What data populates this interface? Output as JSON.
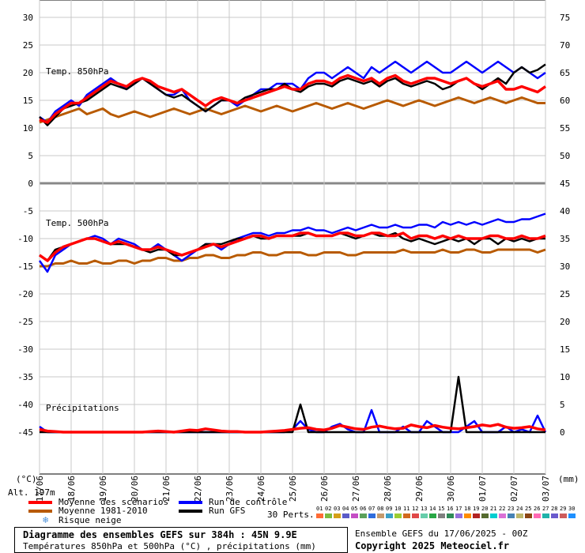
{
  "chart_data": {
    "type": "line",
    "title": "Diagramme des ensembles GEFS sur 384h : 45N 9.9E",
    "subtitle": "Températures 850hPa et 500hPa (°C) , précipitations (mm)",
    "x_tick_labels": [
      "17/06",
      "18/06",
      "19/06",
      "20/06",
      "21/06",
      "22/06",
      "23/06",
      "24/06",
      "25/06",
      "26/06",
      "27/06",
      "28/06",
      "29/06",
      "30/06",
      "01/07",
      "02/07",
      "03/07"
    ],
    "left_axis": {
      "label": "(°C)",
      "ticks": [
        30,
        25,
        20,
        15,
        10,
        5,
        0,
        -5,
        -10,
        -15,
        -20,
        -25,
        -30,
        -35,
        -40,
        -45
      ],
      "range": [
        -45,
        30
      ]
    },
    "right_axis": {
      "label": "(mm)",
      "ticks": [
        75,
        70,
        65,
        60,
        55,
        50,
        45,
        40,
        35,
        30,
        25,
        20,
        15,
        10,
        5,
        0
      ],
      "range": [
        0,
        75
      ]
    },
    "panel_labels": [
      "Temp. 850hPa",
      "Temp. 500hPa",
      "Précipitations"
    ],
    "x_step_days": 0.25,
    "series": [
      {
        "name": "Moyenne des scénarios",
        "group": "t850",
        "color": "#ff0000",
        "values": [
          11.5,
          11,
          12.5,
          13.5,
          14.5,
          14.5,
          15.5,
          16.5,
          17.5,
          18.5,
          18,
          17.5,
          18.5,
          19,
          18.5,
          17.5,
          17,
          16.5,
          17,
          16,
          15,
          14,
          15,
          15.5,
          15,
          14.5,
          15,
          15.5,
          16,
          16.5,
          17,
          17.5,
          17,
          17,
          18,
          18.5,
          18.5,
          18,
          19,
          19.5,
          19,
          18.5,
          19,
          18,
          19,
          19.5,
          18.5,
          18,
          18.5,
          19,
          19,
          18.5,
          18,
          18.5,
          19,
          18,
          17.5,
          18,
          18.5,
          17,
          17,
          17.5,
          17,
          16.5,
          17.5
        ]
      },
      {
        "name": "Moyenne 1981-2010",
        "group": "t850",
        "color": "#b85a00",
        "values": [
          11,
          11.5,
          12,
          12.5,
          13,
          13.5,
          12.5,
          13,
          13.5,
          12.5,
          12,
          12.5,
          13,
          12.5,
          12,
          12.5,
          13,
          13.5,
          13,
          12.5,
          13,
          13.5,
          13,
          12.5,
          13,
          13.5,
          14,
          13.5,
          13,
          13.5,
          14,
          13.5,
          13,
          13.5,
          14,
          14.5,
          14,
          13.5,
          14,
          14.5,
          14,
          13.5,
          14,
          14.5,
          15,
          14.5,
          14,
          14.5,
          15,
          14.5,
          14,
          14.5,
          15,
          15.5,
          15,
          14.5,
          15,
          15.5,
          15,
          14.5,
          15,
          15.5,
          15,
          14.5,
          14.5
        ]
      },
      {
        "name": "Run de contrôle",
        "group": "t850",
        "color": "#0000ff",
        "values": [
          12,
          11,
          13,
          14,
          15,
          14,
          16,
          17,
          18,
          19,
          18,
          17,
          18,
          19,
          18,
          17,
          16,
          16,
          17,
          15,
          14,
          13,
          14,
          15,
          15,
          14,
          15,
          16,
          17,
          17,
          18,
          18,
          18,
          17,
          19,
          20,
          20,
          19,
          20,
          21,
          20,
          19,
          21,
          20,
          21,
          22,
          21,
          20,
          21,
          22,
          21,
          20,
          20,
          21,
          22,
          21,
          20,
          21,
          22,
          21,
          20,
          21,
          20,
          19,
          20
        ]
      },
      {
        "name": "Run GFS",
        "group": "t850",
        "color": "#000000",
        "values": [
          12,
          10.5,
          12,
          13.5,
          14,
          14.5,
          15,
          16,
          17,
          18,
          17.5,
          17,
          18,
          19,
          18,
          17,
          16,
          15.5,
          16,
          15,
          14,
          13,
          14,
          15,
          15,
          14.5,
          15.5,
          16,
          16.5,
          17,
          17,
          18,
          17,
          16.5,
          17.5,
          18,
          18,
          17.5,
          18.5,
          19,
          18.5,
          18,
          18.5,
          17.5,
          18.5,
          19,
          18,
          17.5,
          18,
          18.5,
          18,
          17,
          17.5,
          18.5,
          19,
          18,
          17,
          18,
          19,
          18,
          20,
          21,
          20,
          20.5,
          21.5
        ]
      },
      {
        "name": "Moyenne des scénarios",
        "group": "t500",
        "color": "#ff0000",
        "values": [
          -13,
          -14,
          -12.5,
          -11.5,
          -11,
          -10.5,
          -10,
          -10,
          -10.5,
          -11,
          -10.5,
          -11,
          -11.5,
          -12,
          -12,
          -11.5,
          -12,
          -12.5,
          -13,
          -12.5,
          -12,
          -11.5,
          -11,
          -11.5,
          -11,
          -10.5,
          -10,
          -9.5,
          -9.5,
          -10,
          -9.5,
          -9.5,
          -9.5,
          -9,
          -9,
          -9.5,
          -9.5,
          -9.5,
          -9,
          -9,
          -9.5,
          -9.5,
          -9,
          -9,
          -9.5,
          -9.5,
          -9,
          -10,
          -9.5,
          -9.5,
          -10,
          -9.5,
          -10,
          -9.5,
          -10,
          -10,
          -10,
          -9.5,
          -9.5,
          -10,
          -10,
          -9.5,
          -10,
          -10,
          -9.5
        ]
      },
      {
        "name": "Moyenne 1981-2010",
        "group": "t500",
        "color": "#b85a00",
        "values": [
          -15,
          -15,
          -14.5,
          -14.5,
          -14,
          -14.5,
          -14.5,
          -14,
          -14.5,
          -14.5,
          -14,
          -14,
          -14.5,
          -14,
          -14,
          -13.5,
          -13.5,
          -14,
          -14,
          -13.5,
          -13.5,
          -13,
          -13,
          -13.5,
          -13.5,
          -13,
          -13,
          -12.5,
          -12.5,
          -13,
          -13,
          -12.5,
          -12.5,
          -12.5,
          -13,
          -13,
          -12.5,
          -12.5,
          -12.5,
          -13,
          -13,
          -12.5,
          -12.5,
          -12.5,
          -12.5,
          -12.5,
          -12,
          -12.5,
          -12.5,
          -12.5,
          -12.5,
          -12,
          -12.5,
          -12.5,
          -12,
          -12,
          -12.5,
          -12.5,
          -12,
          -12,
          -12,
          -12,
          -12,
          -12.5,
          -12
        ]
      },
      {
        "name": "Run de contrôle",
        "group": "t500",
        "color": "#0000ff",
        "values": [
          -14,
          -16,
          -13,
          -12,
          -11,
          -10.5,
          -10,
          -9.5,
          -10,
          -11,
          -10,
          -10.5,
          -11,
          -12,
          -12,
          -11,
          -12,
          -13,
          -14,
          -13,
          -12,
          -11,
          -11,
          -12,
          -11,
          -10,
          -9.5,
          -9,
          -9,
          -9.5,
          -9,
          -9,
          -8.5,
          -8.5,
          -8,
          -8.5,
          -8.5,
          -9,
          -8.5,
          -8,
          -8.5,
          -8,
          -7.5,
          -8,
          -8,
          -7.5,
          -8,
          -8,
          -7.5,
          -7.5,
          -8,
          -7,
          -7.5,
          -7,
          -7.5,
          -7,
          -7.5,
          -7,
          -6.5,
          -7,
          -7,
          -6.5,
          -6.5,
          -6,
          -5.5
        ]
      },
      {
        "name": "Run GFS",
        "group": "t500",
        "color": "#000000",
        "values": [
          -13,
          -14,
          -12,
          -11.5,
          -11,
          -10.5,
          -10,
          -10,
          -10.5,
          -11,
          -11,
          -11,
          -11.5,
          -12,
          -12.5,
          -12,
          -12,
          -13,
          -13,
          -12.5,
          -12,
          -11,
          -11,
          -11,
          -10.5,
          -10,
          -10,
          -9.5,
          -10,
          -10,
          -9.5,
          -9.5,
          -9.5,
          -9.5,
          -9,
          -9.5,
          -9.5,
          -9.5,
          -9,
          -9.5,
          -10,
          -9.5,
          -9,
          -9.5,
          -9.5,
          -9,
          -10,
          -10.5,
          -10,
          -10.5,
          -11,
          -10.5,
          -10,
          -10.5,
          -10,
          -11,
          -10,
          -10,
          -11,
          -10,
          -10.5,
          -10,
          -10.5,
          -10,
          -10
        ]
      },
      {
        "name": "Moyenne des scénarios",
        "group": "precip",
        "color": "#ff0000",
        "values": [
          0.5,
          0.2,
          0.1,
          0,
          0,
          0,
          0,
          0,
          0,
          0,
          0,
          0,
          0,
          0,
          0.1,
          0.2,
          0.1,
          0,
          0.2,
          0.4,
          0.3,
          0.6,
          0.4,
          0.2,
          0.1,
          0.1,
          0,
          0,
          0,
          0.1,
          0.2,
          0.3,
          0.5,
          0.7,
          0.8,
          0.5,
          0.4,
          0.7,
          1.2,
          0.9,
          0.6,
          0.5,
          0.9,
          1.1,
          0.8,
          0.6,
          0.7,
          1.3,
          1,
          0.8,
          1.2,
          0.9,
          0.7,
          0.6,
          0.8,
          1,
          1.3,
          1.1,
          1.4,
          0.9,
          0.7,
          0.8,
          1,
          0.6,
          0.4
        ]
      },
      {
        "name": "Run de contrôle",
        "group": "precip",
        "color": "#0000ff",
        "values": [
          1,
          0,
          0,
          0,
          0,
          0,
          0,
          0,
          0,
          0,
          0,
          0,
          0,
          0,
          0,
          0,
          0,
          0,
          0,
          0,
          0,
          0,
          0,
          0,
          0,
          0,
          0,
          0,
          0,
          0,
          0,
          0,
          0.5,
          2,
          0.5,
          0,
          0,
          1,
          1.5,
          0.5,
          0,
          0,
          4,
          0,
          0,
          0,
          1,
          0,
          0,
          2,
          1,
          0,
          0,
          0,
          1,
          2,
          0,
          0,
          0,
          1,
          0,
          0.5,
          0,
          3,
          0
        ]
      },
      {
        "name": "Run GFS",
        "group": "precip",
        "color": "#000000",
        "values": [
          0,
          0,
          0,
          0,
          0,
          0,
          0,
          0,
          0,
          0,
          0,
          0,
          0,
          0,
          0,
          0,
          0,
          0,
          0,
          0,
          0,
          0,
          0,
          0,
          0,
          0,
          0,
          0,
          0,
          0,
          0,
          0,
          0,
          5,
          0,
          0,
          0,
          0,
          0,
          0,
          0,
          0,
          0,
          0,
          0,
          0,
          0,
          0,
          0,
          0,
          0,
          0,
          0,
          10,
          0,
          0,
          0,
          0,
          0,
          0,
          0,
          0,
          0,
          0,
          0
        ]
      }
    ],
    "legend": [
      {
        "label": "Moyenne des scénarios",
        "color": "#ff0000"
      },
      {
        "label": "Moyenne 1981-2010",
        "color": "#b85a00"
      },
      {
        "label": "Run de contrôle",
        "color": "#0000ff"
      },
      {
        "label": "Run GFS",
        "color": "#000000"
      },
      {
        "label": "Risque neige",
        "color": "#4a90d9",
        "icon": "snowflake-icon"
      }
    ],
    "ylabel_left": "(°C)",
    "ylabel_right": "(mm)",
    "grid": true
  },
  "info": {
    "altitude": "Alt. 197m",
    "perturbations_label": "30 Perts.",
    "perturbation_ids": [
      "01",
      "02",
      "03",
      "04",
      "05",
      "06",
      "07",
      "08",
      "09",
      "10",
      "11",
      "12",
      "13",
      "14",
      "15",
      "16",
      "17",
      "18",
      "19",
      "20",
      "21",
      "22",
      "23",
      "24",
      "25",
      "26",
      "27",
      "28",
      "29",
      "30"
    ],
    "perturbation_colors": [
      "#ff6b35",
      "#7cbb3f",
      "#d4a017",
      "#5b5bc7",
      "#c44dc4",
      "#5aa05a",
      "#2f6ddd",
      "#c49a6c",
      "#3aa0c7",
      "#9acd32",
      "#d2691e",
      "#e04848",
      "#66cdaa",
      "#28a745",
      "#7f7f7f",
      "#2e8b57",
      "#9370db",
      "#ff8c00",
      "#b22222",
      "#556b2f",
      "#00ced1",
      "#da70d6",
      "#4682b4",
      "#bdb76b",
      "#8b4513",
      "#ff69b4",
      "#20b2aa",
      "#6a5acd",
      "#cd5c5c",
      "#1e90ff"
    ],
    "run_info": "Ensemble GEFS du 17/06/2025 - 00Z",
    "copyright": "Copyright 2025 Meteociel.fr"
  }
}
